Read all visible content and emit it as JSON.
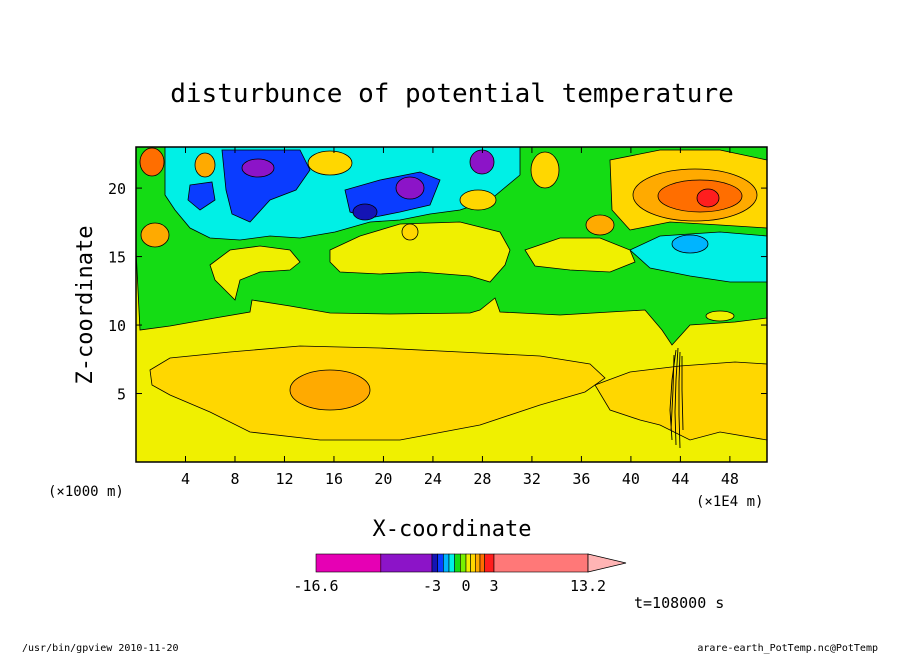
{
  "chart_data": {
    "type": "heatmap",
    "title": "disturbunce of potential temperature",
    "xlabel": "X-coordinate",
    "ylabel": "Z-coordinate",
    "x_unit_left": "(×1000 m)",
    "x_unit_right": "(×1E4 m)",
    "xlim": [
      0,
      51
    ],
    "ylim": [
      0,
      23
    ],
    "x_ticks": [
      4,
      8,
      12,
      16,
      20,
      24,
      28,
      32,
      36,
      40,
      44,
      48
    ],
    "y_ticks": [
      5,
      10,
      15,
      20
    ],
    "time_label": "t=108000 s",
    "colorbar": {
      "labels": [
        {
          "text": "-16.6",
          "value": -16.6
        },
        {
          "text": "-3",
          "value": -3
        },
        {
          "text": "0",
          "value": 0
        },
        {
          "text": "3",
          "value": 3
        },
        {
          "text": "13.2",
          "value": 13.2
        }
      ],
      "colors": [
        "#e600b4",
        "#8c14c8",
        "#1414b4",
        "#0a3cff",
        "#00b4ff",
        "#00f0e6",
        "#14dc14",
        "#78f000",
        "#f0f000",
        "#ffd700",
        "#ffaa00",
        "#ff6e00",
        "#ff1e1e",
        "#ff7878",
        "#ffb4b4"
      ]
    },
    "grid": false,
    "legend": "colorbar-bottom"
  },
  "footer": {
    "left": "/usr/bin/gpview  2010-11-20",
    "right": "arare-earth_PotTemp.nc@PotTemp"
  },
  "colors": {
    "field_bg": "#f0f000",
    "green_band": "#14dc14",
    "cyan": "#00f0e6",
    "light_orange": "#ffd700",
    "orange": "#ffaa00",
    "dark_orange": "#ff6e00",
    "red": "#ff1e1e",
    "blue": "#0a3cff",
    "dark_blue": "#1414b4",
    "purple": "#8c14c8",
    "light_blue": "#00b4ff"
  }
}
